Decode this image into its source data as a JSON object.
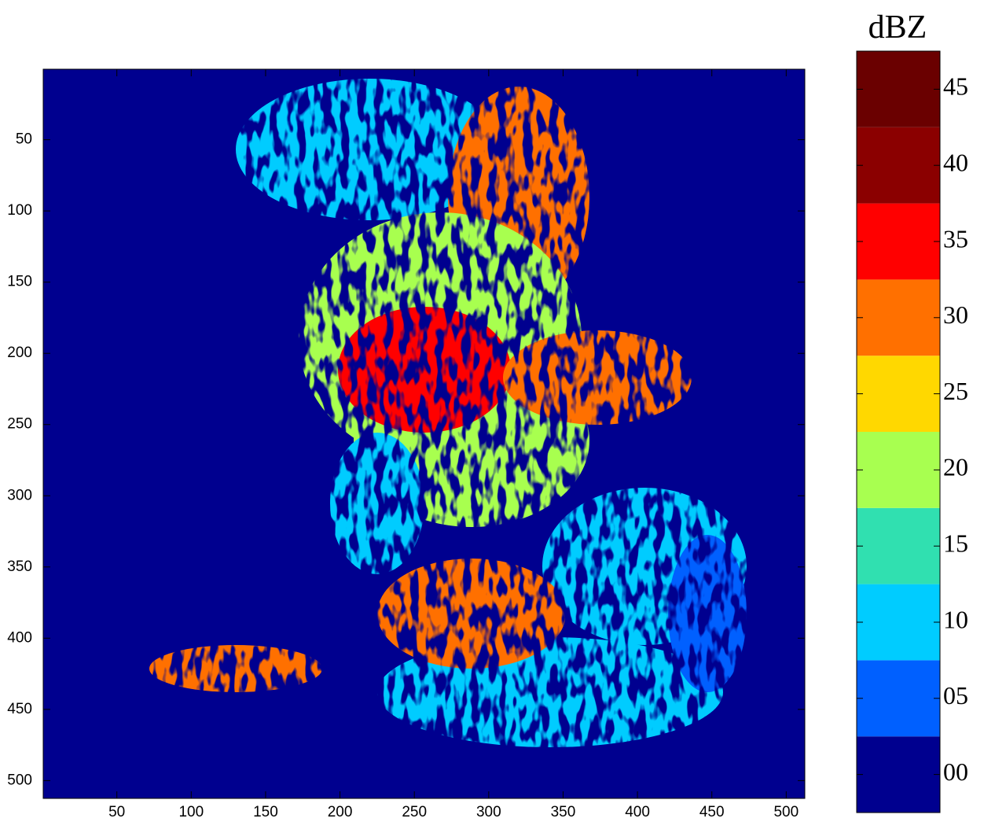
{
  "chart_data": {
    "type": "heatmap",
    "xlim": [
      0.5,
      512.5
    ],
    "ylim": [
      0.5,
      512.5
    ],
    "y_reversed": true,
    "xticks": [
      50,
      100,
      150,
      200,
      250,
      300,
      350,
      400,
      450,
      500
    ],
    "yticks": [
      50,
      100,
      150,
      200,
      250,
      300,
      350,
      400,
      450,
      500
    ],
    "background_color": "#00008f",
    "colorbar": {
      "title": "dBZ",
      "lim": [
        -2.5,
        47.5
      ],
      "levels": [
        0,
        5,
        10,
        15,
        20,
        25,
        30,
        35,
        40,
        45
      ],
      "colors": [
        "#00008f",
        "#0060ff",
        "#00ccff",
        "#30e0b0",
        "#a8ff50",
        "#ffd800",
        "#ff7000",
        "#ff0000",
        "#8b0000",
        "#6a0000"
      ],
      "ticks": [
        {
          "value": 0,
          "label": "00"
        },
        {
          "value": 5,
          "label": "05"
        },
        10,
        15,
        20,
        25,
        30,
        35,
        40,
        45
      ]
    }
  }
}
